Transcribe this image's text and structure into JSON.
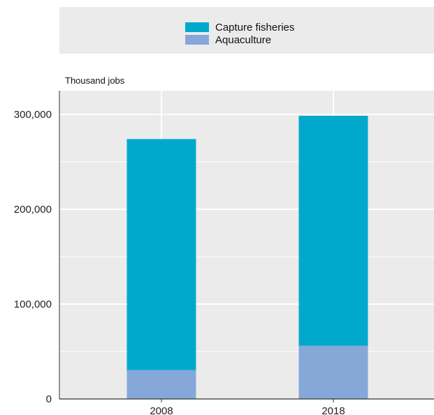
{
  "chart_data": {
    "type": "bar",
    "stacked": true,
    "categories": [
      "2008",
      "2018"
    ],
    "series": [
      {
        "name": "Aquaculture",
        "values": [
          30500,
          56000
        ],
        "color": "#85a8d9"
      },
      {
        "name": "Capture fisheries",
        "values": [
          243500,
          242500
        ],
        "color": "#00a9cc"
      }
    ],
    "legend_order": [
      "Capture fisheries",
      "Aquaculture"
    ],
    "legend_position": "top",
    "ylabel": "Thousand jobs",
    "ylim": [
      0,
      325000
    ],
    "yticks": [
      0,
      100000,
      200000,
      300000
    ],
    "ytick_labels": [
      "0",
      "100,000",
      "200,000",
      "300,000"
    ],
    "grid": true,
    "background": "#ebebeb",
    "legend_background": "#ebebeb"
  }
}
